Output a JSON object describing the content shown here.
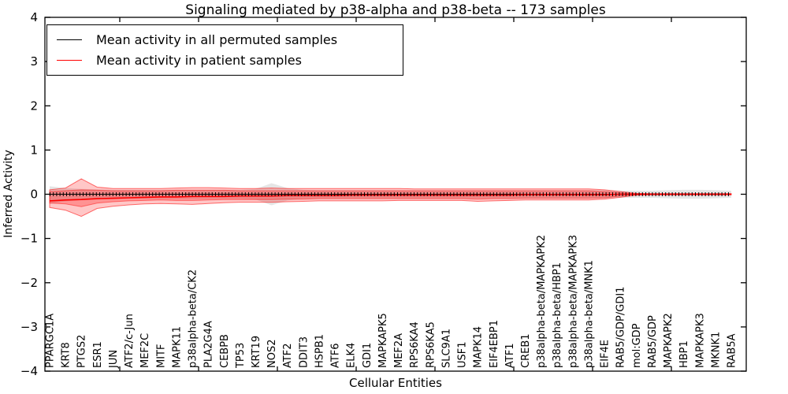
{
  "title": "Signaling mediated by p38-alpha and p38-beta -- 173 samples",
  "legend": {
    "items": [
      {
        "label": "Mean activity in all permuted samples",
        "color": "#000000"
      },
      {
        "label": "Mean activity in patient samples",
        "color": "#ff0000"
      }
    ]
  },
  "axes": {
    "y": {
      "label": "Inferred Activity",
      "tick_labels": [
        "4",
        "3",
        "2",
        "1",
        "0",
        "−1",
        "−2",
        "−3",
        "−4"
      ],
      "tick_values": [
        4,
        3,
        2,
        1,
        0,
        -1,
        -2,
        -3,
        -4
      ]
    },
    "x": {
      "label": "Cellular Entities"
    }
  },
  "chart_data": {
    "type": "line",
    "title": "Signaling mediated by p38-alpha and p38-beta -- 173 samples",
    "xlabel": "Cellular Entities",
    "ylabel": "Inferred Activity",
    "ylim": [
      -4,
      4
    ],
    "grid": false,
    "legend_position": "upper left",
    "categories": [
      "PPARGC1A",
      "KRT8",
      "PTGS2",
      "ESR1",
      "JUN",
      "ATF2/c-Jun",
      "MEF2C",
      "MITF",
      "MAPK11",
      "p38alpha-beta/CK2",
      "PLA2G4A",
      "CEBPB",
      "TP53",
      "KRT19",
      "NOS2",
      "ATF2",
      "DDIT3",
      "HSPB1",
      "ATF6",
      "ELK4",
      "GDI1",
      "MAPKAPK5",
      "MEF2A",
      "RPS6KA4",
      "RPS6KA5",
      "SLC9A1",
      "USF1",
      "MAPK14",
      "EIF4EBP1",
      "ATF1",
      "CREB1",
      "p38alpha-beta/MAPKAPK2",
      "p38alpha-beta/HBP1",
      "p38alpha-beta/MAPKAPK3",
      "p38alpha-beta/MNK1",
      "EIF4E",
      "RAB5/GDP/GDI1",
      "mol:GDP",
      "RAB5/GDP",
      "MAPKAPK2",
      "HBP1",
      "MAPKAPK3",
      "MKNK1",
      "RAB5A"
    ],
    "series": [
      {
        "name": "Mean activity in all permuted samples",
        "color": "#000000",
        "values": [
          0,
          0,
          0,
          0,
          0,
          0,
          0,
          0,
          0,
          0,
          0,
          0,
          0,
          0,
          0,
          0,
          0,
          0,
          0,
          0,
          0,
          0,
          0,
          0,
          0,
          0,
          0,
          0,
          0,
          0,
          0,
          0,
          0,
          0,
          0,
          0,
          0,
          0,
          0,
          0,
          0,
          0,
          0,
          0
        ]
      },
      {
        "name": "Mean activity in patient samples",
        "color": "#ff0000",
        "values": [
          -0.15,
          -0.13,
          -0.12,
          -0.1,
          -0.09,
          -0.08,
          -0.07,
          -0.06,
          -0.06,
          -0.05,
          -0.05,
          -0.05,
          -0.04,
          -0.04,
          -0.04,
          -0.03,
          -0.03,
          -0.03,
          -0.03,
          -0.02,
          -0.02,
          -0.02,
          -0.02,
          -0.02,
          -0.02,
          -0.02,
          -0.02,
          -0.02,
          -0.02,
          -0.02,
          -0.01,
          -0.01,
          -0.01,
          -0.01,
          -0.01,
          -0.01,
          0,
          0,
          0,
          0,
          0,
          0,
          0,
          0
        ]
      }
    ],
    "bands": [
      {
        "name": "permuted-samples-range",
        "color": "#bbbbbb",
        "opacity": 0.38,
        "edge_opacity": 0,
        "upper": [
          0.18,
          0.14,
          0.12,
          0.11,
          0.1,
          0.1,
          0.1,
          0.1,
          0.1,
          0.1,
          0.1,
          0.1,
          0.1,
          0.12,
          0.25,
          0.14,
          0.1,
          0.09,
          0.09,
          0.09,
          0.09,
          0.09,
          0.09,
          0.09,
          0.09,
          0.09,
          0.09,
          0.09,
          0.09,
          0.09,
          0.09,
          0.09,
          0.09,
          0.09,
          0.09,
          0.09,
          0.08,
          0.08,
          0.08,
          0.09,
          0.1,
          0.1,
          0.09,
          0.08
        ],
        "lower": [
          -0.22,
          -0.16,
          -0.13,
          -0.12,
          -0.11,
          -0.1,
          -0.1,
          -0.1,
          -0.1,
          -0.1,
          -0.1,
          -0.1,
          -0.1,
          -0.12,
          -0.25,
          -0.14,
          -0.1,
          -0.09,
          -0.09,
          -0.09,
          -0.09,
          -0.09,
          -0.09,
          -0.09,
          -0.09,
          -0.09,
          -0.09,
          -0.09,
          -0.09,
          -0.09,
          -0.09,
          -0.09,
          -0.09,
          -0.09,
          -0.09,
          -0.09,
          -0.08,
          -0.08,
          -0.08,
          -0.09,
          -0.1,
          -0.1,
          -0.09,
          -0.08
        ]
      },
      {
        "name": "patient-samples-range-outer",
        "color": "#ff0000",
        "opacity": 0.22,
        "edge_opacity": 0.55,
        "upper": [
          0.1,
          0.14,
          0.35,
          0.16,
          0.13,
          0.13,
          0.13,
          0.13,
          0.14,
          0.15,
          0.15,
          0.14,
          0.13,
          0.13,
          0.14,
          0.13,
          0.13,
          0.13,
          0.13,
          0.13,
          0.13,
          0.13,
          0.13,
          0.12,
          0.12,
          0.12,
          0.12,
          0.12,
          0.12,
          0.12,
          0.12,
          0.12,
          0.12,
          0.12,
          0.12,
          0.1,
          0.06,
          0.02,
          0.01,
          0.01,
          0.01,
          0.01,
          0.01,
          0.01
        ],
        "lower": [
          -0.3,
          -0.36,
          -0.5,
          -0.32,
          -0.27,
          -0.24,
          -0.22,
          -0.21,
          -0.22,
          -0.23,
          -0.21,
          -0.19,
          -0.18,
          -0.18,
          -0.18,
          -0.17,
          -0.16,
          -0.15,
          -0.15,
          -0.15,
          -0.15,
          -0.15,
          -0.14,
          -0.14,
          -0.14,
          -0.14,
          -0.14,
          -0.16,
          -0.15,
          -0.14,
          -0.13,
          -0.13,
          -0.13,
          -0.13,
          -0.13,
          -0.11,
          -0.07,
          -0.02,
          -0.01,
          -0.01,
          -0.01,
          -0.01,
          -0.01,
          -0.01
        ]
      },
      {
        "name": "patient-samples-range-inner",
        "color": "#ff0000",
        "opacity": 0.26,
        "edge_opacity": 0.45,
        "upper": [
          0.06,
          0.08,
          0.1,
          0.09,
          0.08,
          0.08,
          0.08,
          0.08,
          0.09,
          0.09,
          0.09,
          0.09,
          0.08,
          0.08,
          0.08,
          0.08,
          0.08,
          0.08,
          0.08,
          0.08,
          0.08,
          0.08,
          0.08,
          0.08,
          0.08,
          0.08,
          0.08,
          0.08,
          0.08,
          0.08,
          0.08,
          0.08,
          0.08,
          0.08,
          0.08,
          0.06,
          0.03,
          0.01,
          0.01,
          0.01,
          0.01,
          0.01,
          0.01,
          0.01
        ],
        "lower": [
          -0.2,
          -0.22,
          -0.28,
          -0.2,
          -0.17,
          -0.15,
          -0.14,
          -0.13,
          -0.14,
          -0.14,
          -0.13,
          -0.12,
          -0.12,
          -0.12,
          -0.12,
          -0.11,
          -0.11,
          -0.1,
          -0.1,
          -0.1,
          -0.1,
          -0.1,
          -0.1,
          -0.1,
          -0.1,
          -0.1,
          -0.1,
          -0.11,
          -0.1,
          -0.1,
          -0.09,
          -0.09,
          -0.09,
          -0.09,
          -0.09,
          -0.08,
          -0.04,
          -0.01,
          -0.01,
          -0.01,
          -0.01,
          -0.01,
          -0.01,
          -0.01
        ]
      }
    ]
  }
}
